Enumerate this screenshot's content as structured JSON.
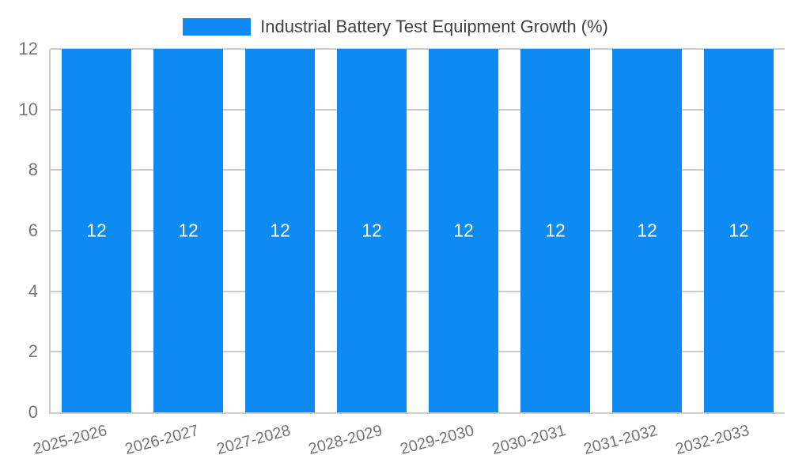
{
  "chart_data": {
    "type": "bar",
    "title": "Industrial Battery Test Equipment Growth (%)",
    "categories": [
      "2025-2026",
      "2026-2027",
      "2027-2028",
      "2028-2029",
      "2029-2030",
      "2030-2031",
      "2031-2032",
      "2032-2033"
    ],
    "values": [
      12,
      12,
      12,
      12,
      12,
      12,
      12,
      12
    ],
    "bar_labels": [
      "12",
      "12",
      "12",
      "12",
      "12",
      "12",
      "12",
      "12"
    ],
    "xlabel": "",
    "ylabel": "",
    "ylim": [
      0,
      12
    ],
    "yticks": [
      0,
      2,
      4,
      6,
      8,
      10,
      12
    ],
    "grid": true,
    "legend_position": "top-center",
    "colors": {
      "bar": "#0d8bf2",
      "grid": "#cccccc",
      "axis_text": "#757575",
      "title_text": "#424242",
      "bar_label": "#ffffff",
      "background": "#ffffff"
    }
  }
}
